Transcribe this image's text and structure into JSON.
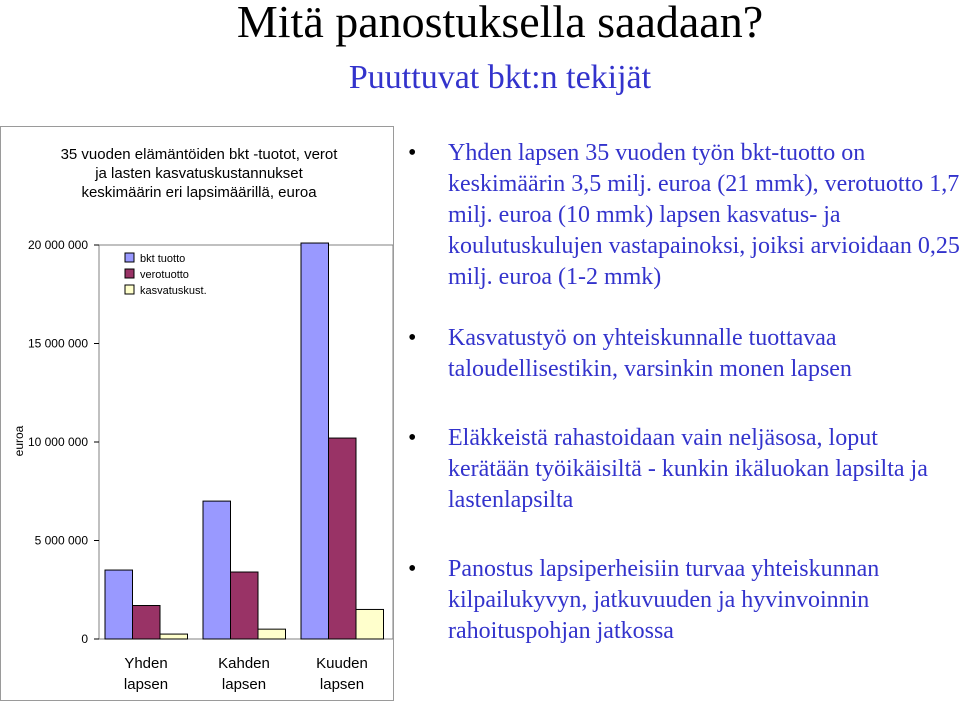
{
  "slide": {
    "title": "Mitä panostuksella saadaan?",
    "subtitle": "Puuttuvat bkt:n tekijät"
  },
  "bullets": [
    "Yhden lapsen 35 vuoden työn bkt-tuotto on keskimäärin 3,5 milj. euroa (21 mmk), verotuotto 1,7 milj. euroa (10 mmk) lapsen kasvatus- ja koulutuskulujen vastapainoksi, joiksi arvioidaan 0,25 milj. euroa (1-2 mmk)",
    "Kasvatustyö on yhteiskunnalle tuottavaa taloudellisestikin, varsinkin monen lapsen",
    "Eläkkeistä rahastoidaan vain neljäsosa, loput kerätään työikäisiltä - kunkin ikäluokan lapsilta ja lastenlapsilta",
    "Panostus lapsiperheisiin turvaa yhteiskunnan kilpailukyvyn, jatkuvuuden ja hyvinvoinnin rahoituspohjan jatkossa"
  ],
  "colors": {
    "subtitle": "#3333cc",
    "bullet_text": "#3333cc",
    "bkt": "#9999ff",
    "vero": "#993366",
    "kasv": "#ffffcc"
  },
  "chart_data": {
    "type": "bar",
    "title_lines": [
      "35 vuoden elämäntöiden bkt -tuotot, verot",
      "ja lasten kasvatuskustannukset",
      "keskimäärin eri lapsimäärillä, euroa"
    ],
    "ylabel": "euroa",
    "ylim": [
      0,
      20000000
    ],
    "yticks": [
      {
        "value": 0,
        "label": "0"
      },
      {
        "value": 5000000,
        "label": "5 000 000"
      },
      {
        "value": 10000000,
        "label": "10 000 000"
      },
      {
        "value": 15000000,
        "label": "15 000 000"
      },
      {
        "value": 20000000,
        "label": "20 000 000"
      }
    ],
    "categories": [
      [
        "Yhden",
        "lapsen"
      ],
      [
        "Kahden",
        "lapsen"
      ],
      [
        "Kuuden",
        "lapsen"
      ]
    ],
    "series": [
      {
        "name": "bkt tuotto",
        "color": "#9999ff",
        "values": [
          3500000,
          7000000,
          21000000
        ]
      },
      {
        "name": "verotuotto",
        "color": "#993366",
        "values": [
          1700000,
          3400000,
          10200000
        ]
      },
      {
        "name": "kasvatuskust.",
        "color": "#ffffcc",
        "values": [
          250000,
          500000,
          1500000
        ]
      }
    ],
    "legend_position": "top-left",
    "grid": false
  }
}
